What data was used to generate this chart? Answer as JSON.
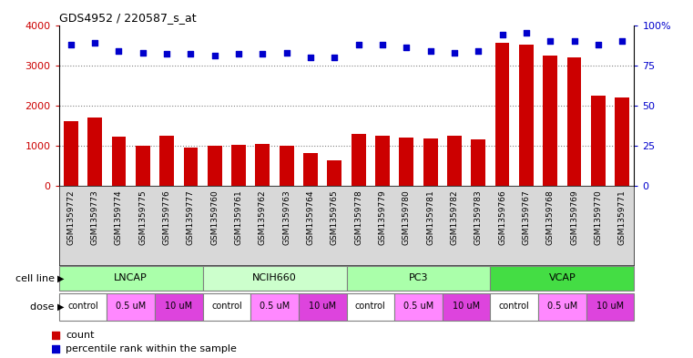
{
  "title": "GDS4952 / 220587_s_at",
  "samples": [
    "GSM1359772",
    "GSM1359773",
    "GSM1359774",
    "GSM1359775",
    "GSM1359776",
    "GSM1359777",
    "GSM1359760",
    "GSM1359761",
    "GSM1359762",
    "GSM1359763",
    "GSM1359764",
    "GSM1359765",
    "GSM1359778",
    "GSM1359779",
    "GSM1359780",
    "GSM1359781",
    "GSM1359782",
    "GSM1359783",
    "GSM1359766",
    "GSM1359767",
    "GSM1359768",
    "GSM1359769",
    "GSM1359770",
    "GSM1359771"
  ],
  "counts": [
    1620,
    1700,
    1220,
    1010,
    1250,
    950,
    1000,
    1020,
    1050,
    1000,
    820,
    650,
    1300,
    1250,
    1200,
    1190,
    1250,
    1170,
    3550,
    3520,
    3250,
    3200,
    2250,
    2200
  ],
  "percentile_ranks": [
    88,
    89,
    84,
    83,
    82,
    82,
    81,
    82,
    82,
    83,
    80,
    80,
    88,
    88,
    86,
    84,
    83,
    84,
    94,
    95,
    90,
    90,
    88,
    90
  ],
  "cell_lines": [
    {
      "name": "LNCAP",
      "start": 0,
      "end": 6,
      "color": "#aaffaa"
    },
    {
      "name": "NCIH660",
      "start": 6,
      "end": 12,
      "color": "#ccffcc"
    },
    {
      "name": "PC3",
      "start": 12,
      "end": 18,
      "color": "#aaffaa"
    },
    {
      "name": "VCAP",
      "start": 18,
      "end": 24,
      "color": "#44dd44"
    }
  ],
  "dose_segments": [
    {
      "label": "control",
      "color": "#ffffff",
      "start": 0,
      "end": 2
    },
    {
      "label": "0.5 uM",
      "color": "#ff88ff",
      "start": 2,
      "end": 4
    },
    {
      "label": "10 uM",
      "color": "#dd44dd",
      "start": 4,
      "end": 6
    },
    {
      "label": "control",
      "color": "#ffffff",
      "start": 6,
      "end": 8
    },
    {
      "label": "0.5 uM",
      "color": "#ff88ff",
      "start": 8,
      "end": 10
    },
    {
      "label": "10 uM",
      "color": "#dd44dd",
      "start": 10,
      "end": 12
    },
    {
      "label": "control",
      "color": "#ffffff",
      "start": 12,
      "end": 14
    },
    {
      "label": "0.5 uM",
      "color": "#ff88ff",
      "start": 14,
      "end": 16
    },
    {
      "label": "10 uM",
      "color": "#dd44dd",
      "start": 16,
      "end": 18
    },
    {
      "label": "control",
      "color": "#ffffff",
      "start": 18,
      "end": 20
    },
    {
      "label": "0.5 uM",
      "color": "#ff88ff",
      "start": 20,
      "end": 22
    },
    {
      "label": "10 uM",
      "color": "#dd44dd",
      "start": 22,
      "end": 24
    }
  ],
  "bar_color": "#cc0000",
  "dot_color": "#0000cc",
  "ylim_left": [
    0,
    4000
  ],
  "ylim_right": [
    0,
    100
  ],
  "yticks_left": [
    0,
    1000,
    2000,
    3000,
    4000
  ],
  "yticks_right": [
    0,
    25,
    50,
    75,
    100
  ],
  "yticklabels_right": [
    "0",
    "25",
    "50",
    "75",
    "100%"
  ],
  "grid_values": [
    1000,
    2000,
    3000
  ],
  "plot_bg": "#ffffff",
  "xtick_bg": "#d8d8d8",
  "fig_bg": "#ffffff"
}
